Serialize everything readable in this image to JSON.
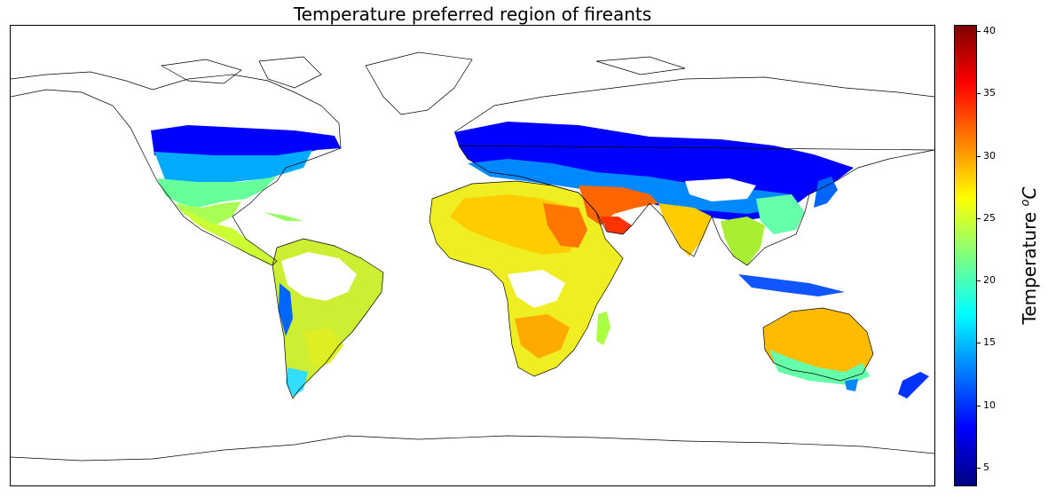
{
  "title": "Temperature preferred region of fireants",
  "colorbar": {
    "label_prefix": "Temperature ",
    "label_sup": "o",
    "label_unit": "C",
    "min": 3.5,
    "max": 40.5,
    "ticks": [
      "5",
      "10",
      "15",
      "20",
      "25",
      "30",
      "35",
      "40"
    ],
    "colormap": "jet",
    "colors": [
      "#00007f",
      "#0000ff",
      "#007fff",
      "#00ffff",
      "#7fff7f",
      "#ffff00",
      "#ff7f00",
      "#ff0000",
      "#7f0000"
    ]
  },
  "map": {
    "projection": "equirectangular",
    "coastline_color": "#000000",
    "no_data_color": "#ffffff"
  }
}
